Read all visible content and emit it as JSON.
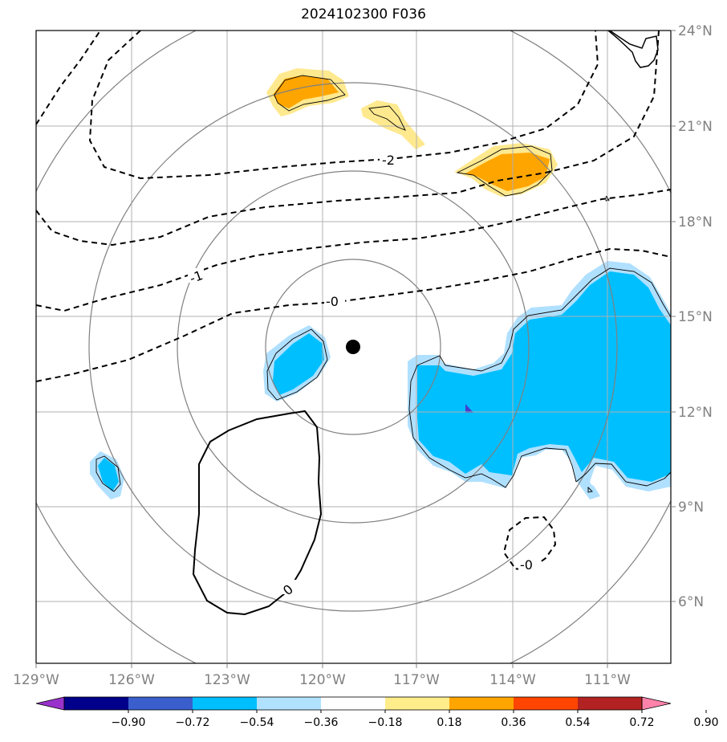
{
  "title": "2024102300 F036",
  "map": {
    "lon_labels": [
      "129°W",
      "126°W",
      "123°W",
      "120°W",
      "117°W",
      "114°W",
      "111°W"
    ],
    "lat_labels": [
      "24°N",
      "21°N",
      "18°N",
      "15°N",
      "12°N",
      "9°N",
      "6°N"
    ],
    "lon_range": [
      -129,
      -109
    ],
    "lat_range": [
      4,
      24
    ],
    "center_marker": {
      "lon": -119,
      "lat": 14
    },
    "contour_labels": [
      "-2",
      "-1",
      "-0",
      "0",
      "-0",
      "4"
    ],
    "colors": {
      "range_rings": "#808080",
      "gridlines": "#b0b0b0",
      "light_blue": "#b0e0ff",
      "blue": "#00bfff",
      "light_yellow": "#ffe98f",
      "orange": "#ffa500",
      "indigo": "#4040d0"
    }
  },
  "colorbar": {
    "labels": [
      "−0.90",
      "−0.72",
      "−0.54",
      "−0.36",
      "−0.18",
      "0.18",
      "0.36",
      "0.54",
      "0.72",
      "0.90"
    ],
    "colors": [
      "#9932cc",
      "#00008b",
      "#3a5fcd",
      "#00bfff",
      "#b0e2ff",
      "#ffffff",
      "#ffec8b",
      "#ffa500",
      "#ff4500",
      "#b22222",
      "#ff82ab"
    ]
  }
}
